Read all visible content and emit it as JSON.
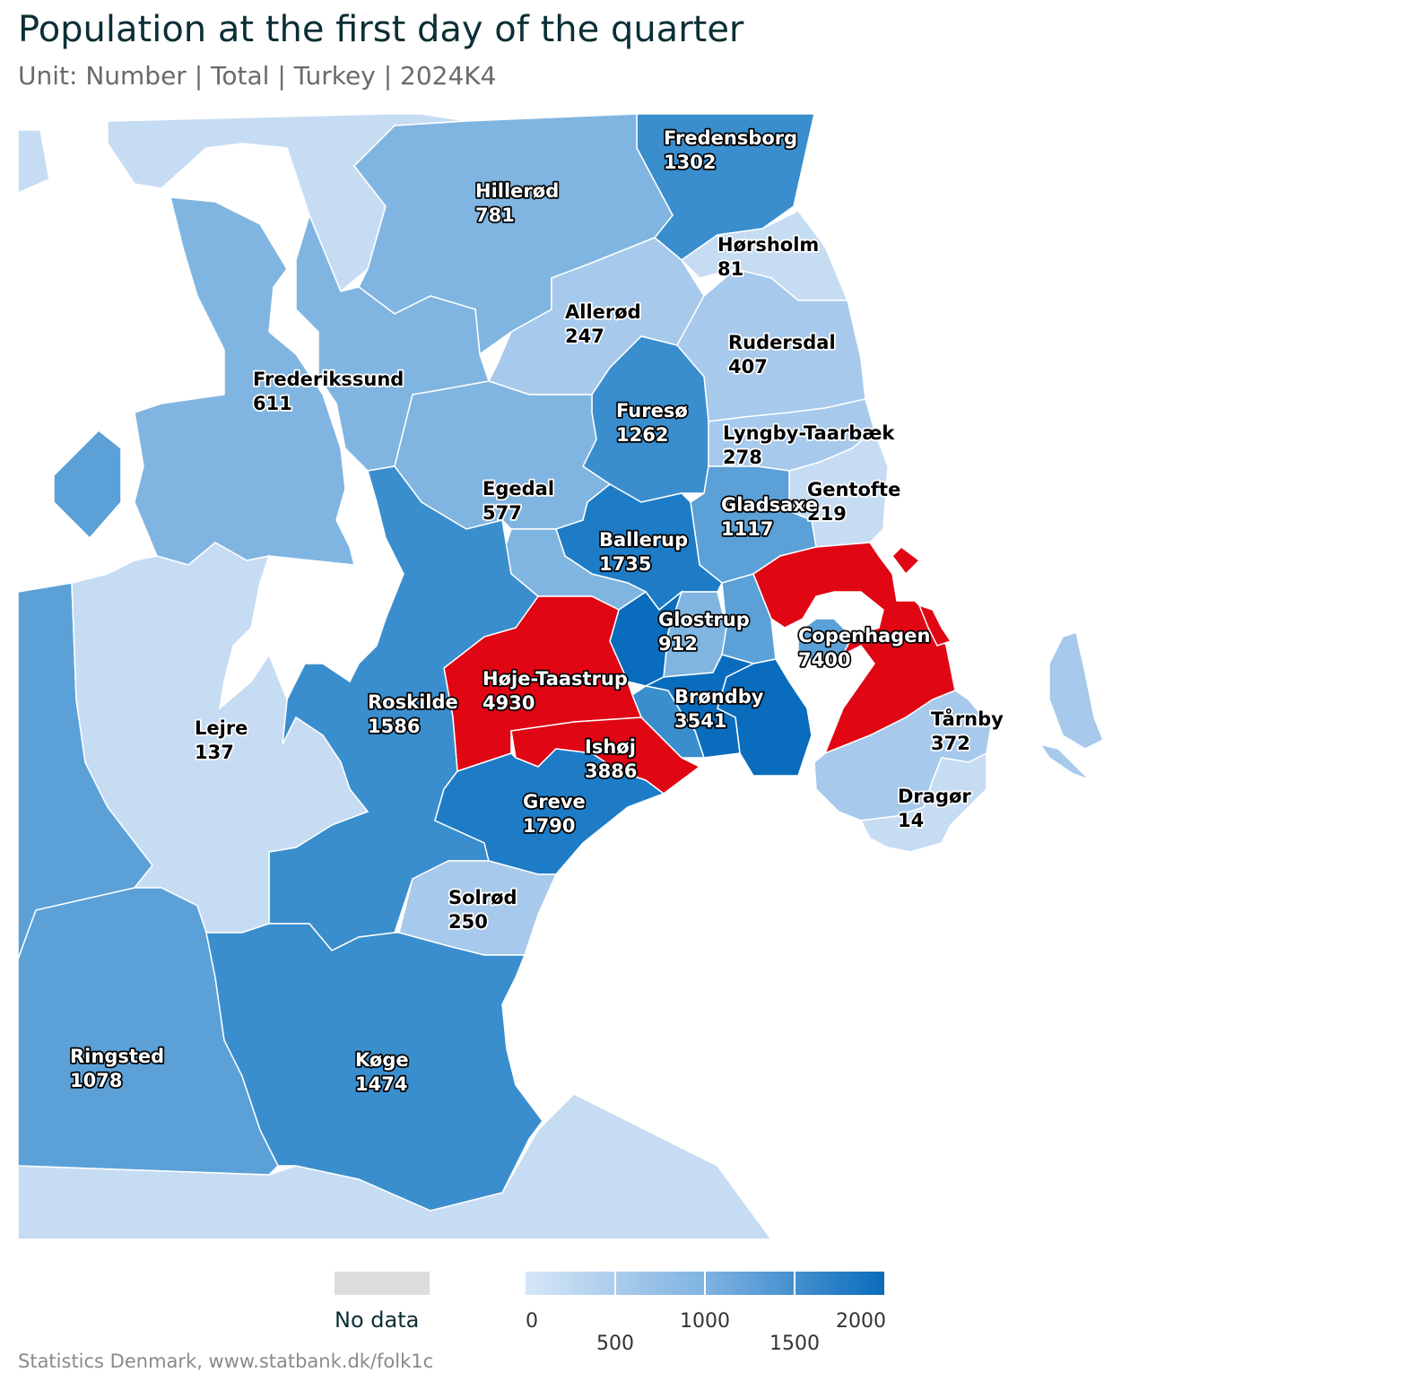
{
  "title": "Population at the first day of the quarter",
  "subtitle": "Unit: Number | Total | Turkey | 2024K4",
  "source": "Statistics Denmark, www.statbank.dk/folk1c",
  "colors": {
    "c0": "#c6dcf3",
    "c1": "#a6c9ec",
    "c2": "#80b5e1",
    "c3": "#5ba1d8",
    "c4": "#3a8ecd",
    "c5": "#1e7cc6",
    "c6": "#0a6cbc",
    "over": "#e00614",
    "nodata": "#dddddd",
    "water": "#ffffff"
  },
  "legend": {
    "nodata_label": "No data",
    "ticks_top": [
      "0",
      "1000",
      "2000"
    ],
    "ticks_bottom": [
      "500",
      "1500"
    ]
  },
  "municipalities": [
    {
      "name": "Fredensborg",
      "value": "1302"
    },
    {
      "name": "Hillerød",
      "value": "781"
    },
    {
      "name": "Hørsholm",
      "value": "81"
    },
    {
      "name": "Allerød",
      "value": "247"
    },
    {
      "name": "Rudersdal",
      "value": "407"
    },
    {
      "name": "Frederikssund",
      "value": "611"
    },
    {
      "name": "Furesø",
      "value": "1262"
    },
    {
      "name": "Lyngby-Taarbæk",
      "value": "278"
    },
    {
      "name": "Egedal",
      "value": "577"
    },
    {
      "name": "Gentofte",
      "value": "219"
    },
    {
      "name": "Gladsaxe",
      "value": "1117"
    },
    {
      "name": "Ballerup",
      "value": "1735"
    },
    {
      "name": "Glostrup",
      "value": "912"
    },
    {
      "name": "Copenhagen",
      "value": "7400"
    },
    {
      "name": "Høje-Taastrup",
      "value": "4930"
    },
    {
      "name": "Roskilde",
      "value": "1586"
    },
    {
      "name": "Brøndby",
      "value": "3541"
    },
    {
      "name": "Lejre",
      "value": "137"
    },
    {
      "name": "Tårnby",
      "value": "372"
    },
    {
      "name": "Ishøj",
      "value": "3886"
    },
    {
      "name": "Greve",
      "value": "1790"
    },
    {
      "name": "Dragør",
      "value": "14"
    },
    {
      "name": "Solrød",
      "value": "250"
    },
    {
      "name": "Ringsted",
      "value": "1078"
    },
    {
      "name": "Køge",
      "value": "1474"
    }
  ]
}
